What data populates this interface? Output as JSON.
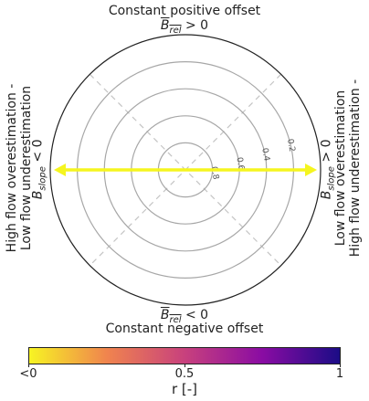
{
  "chart_data": {
    "type": "polar",
    "title_top": "Constant positive offset",
    "subtitle_top": "> 0",
    "title_bottom": "Constant negative offset",
    "subtitle_bottom": "< 0",
    "b_rel_symbol": "B",
    "b_rel_sub": "rel",
    "b_slope_symbol": "B",
    "b_slope_sub": "slope",
    "slope_pos_suffix": "> 0",
    "slope_neg_suffix": "< 0",
    "left_line1": "High flow overestimation -",
    "left_line2": "Low flow underestimation",
    "right_line1": "Low flow overestimation",
    "right_line2": "High flow underestimation -",
    "radial_ticks": [
      {
        "r": 0.2,
        "label": "0.2"
      },
      {
        "r": 0.4,
        "label": "0.4"
      },
      {
        "r": 0.6,
        "label": "0.6"
      },
      {
        "r": 0.8,
        "label": "0.8"
      }
    ],
    "arrow": {
      "from": 180,
      "to": 0,
      "color": "#f5f51f",
      "r_value": "<0"
    },
    "colorbar": {
      "label": "r [-]",
      "ticks": [
        "<0",
        "0.5",
        "1"
      ],
      "colors": [
        "#f7f423",
        "#f0844e",
        "#c8417d",
        "#8a0ca3",
        "#1b0c86"
      ]
    },
    "grid": true
  }
}
